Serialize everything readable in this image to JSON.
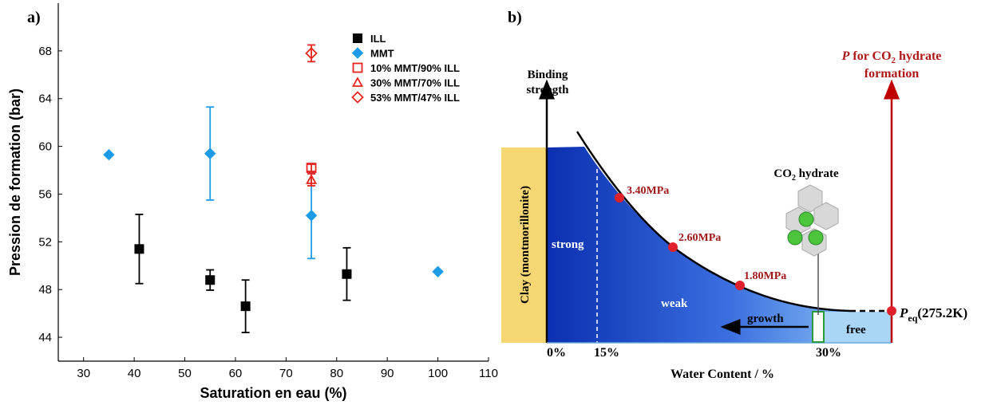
{
  "panel_labels": [
    "a)",
    "b)"
  ],
  "chart_data": {
    "type": "scatter",
    "xlabel": "Saturation en eau (%)",
    "ylabel": "Pression de formation (bar)",
    "xlim": [
      25,
      110
    ],
    "ylim": [
      42,
      72
    ],
    "xticks": [
      30,
      40,
      50,
      60,
      70,
      80,
      90,
      100,
      110
    ],
    "yticks": [
      44,
      48,
      52,
      56,
      60,
      64,
      68
    ],
    "legend": "upper right",
    "series": [
      {
        "name": "ILL",
        "color": "#000000",
        "marker": "square",
        "filled": true,
        "x": [
          41,
          55,
          62,
          82
        ],
        "values": [
          51.4,
          48.8,
          46.6,
          49.3
        ],
        "errors": [
          2.9,
          0.85,
          2.2,
          2.2
        ]
      },
      {
        "name": "MMT",
        "color": "#1e9be6",
        "marker": "diamond",
        "filled": true,
        "x": [
          35,
          55,
          75,
          100
        ],
        "values": [
          59.3,
          59.4,
          54.2,
          49.5
        ],
        "errors": [
          null,
          3.9,
          3.6,
          null
        ]
      },
      {
        "name": "10% MMT/90% ILL",
        "color": "#e8231e",
        "marker": "square",
        "filled": false,
        "x": [
          75
        ],
        "values": [
          58.2
        ],
        "errors": [
          0.3
        ]
      },
      {
        "name": "30% MMT/70% ILL",
        "color": "#e8231e",
        "marker": "triangle",
        "filled": false,
        "x": [
          75
        ],
        "values": [
          57.2
        ],
        "errors": [
          0.5
        ]
      },
      {
        "name": "53% MMT/47% ILL",
        "color": "#e8231e",
        "marker": "diamond",
        "filled": false,
        "x": [
          75
        ],
        "values": [
          67.8
        ],
        "errors": [
          0.7
        ]
      }
    ]
  },
  "diagram": {
    "y_axis_label": [
      "Binding",
      "strength"
    ],
    "pressure_axis_label": {
      "line1": [
        "P",
        " for CO",
        "2",
        " hydrate"
      ],
      "line2": "formation"
    },
    "clay_label": "Clay (montmorillonite)",
    "regions": [
      "strong",
      "weak",
      "free"
    ],
    "growth_label": "growth",
    "hydrate_label": [
      "CO",
      "2",
      " hydrate"
    ],
    "points": [
      "3.40MPa",
      "2.60MPa",
      "1.80MPa"
    ],
    "equilibrium_label": [
      "P",
      "eq",
      "(275.2K)"
    ],
    "x_ticks": [
      "0%",
      "15%",
      "30%"
    ],
    "x_axis_label": "Water Content / %"
  }
}
